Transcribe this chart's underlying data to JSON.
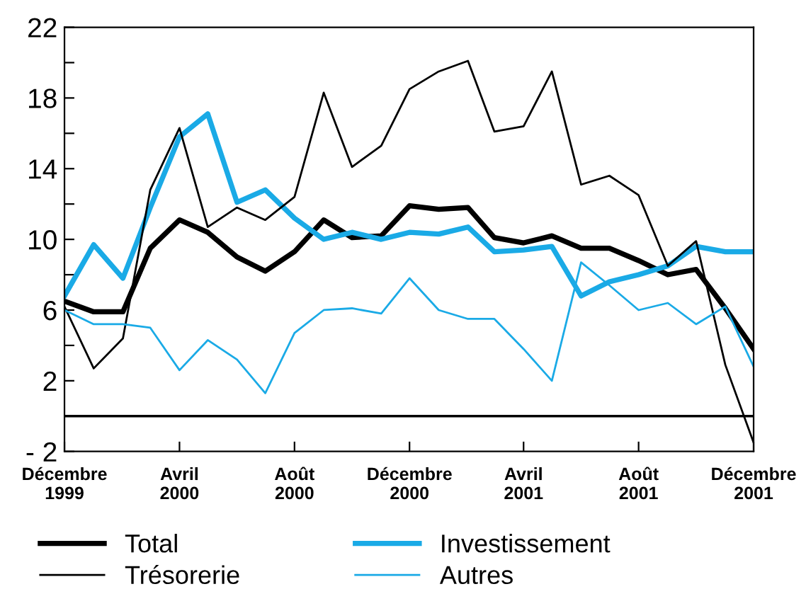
{
  "chart_data": {
    "type": "line",
    "x": [
      "1999-12",
      "2000-01",
      "2000-02",
      "2000-03",
      "2000-04",
      "2000-05",
      "2000-06",
      "2000-07",
      "2000-08",
      "2000-09",
      "2000-10",
      "2000-11",
      "2000-12",
      "2001-01",
      "2001-02",
      "2001-03",
      "2001-04",
      "2001-05",
      "2001-06",
      "2001-07",
      "2001-08",
      "2001-09",
      "2001-10",
      "2001-11",
      "2001-12"
    ],
    "series": [
      {
        "name": "Total",
        "color": "#000000",
        "values": [
          6.5,
          5.9,
          5.9,
          9.5,
          11.1,
          10.4,
          9.0,
          8.2,
          9.3,
          11.1,
          10.1,
          10.2,
          11.9,
          11.7,
          11.8,
          10.1,
          9.8,
          10.2,
          9.5,
          9.5,
          8.8,
          8.0,
          8.3,
          6.1,
          3.8
        ]
      },
      {
        "name": "Investissement",
        "color": "#1aaae6",
        "values": [
          6.8,
          9.7,
          7.8,
          11.8,
          15.8,
          17.1,
          12.1,
          12.8,
          11.2,
          10.0,
          10.4,
          10.0,
          10.4,
          10.3,
          10.7,
          9.3,
          9.4,
          9.6,
          6.8,
          7.6,
          8.0,
          8.5,
          9.6,
          9.3,
          9.3
        ]
      },
      {
        "name": "Trésorerie",
        "color": "#000000",
        "values": [
          6.2,
          2.7,
          4.4,
          12.8,
          16.3,
          10.7,
          11.8,
          11.1,
          12.4,
          18.3,
          14.1,
          15.3,
          18.5,
          19.5,
          20.1,
          16.1,
          16.4,
          19.5,
          13.1,
          13.6,
          12.5,
          8.5,
          9.9,
          2.9,
          -1.5
        ]
      },
      {
        "name": "Autres",
        "color": "#1aaae6",
        "values": [
          6.0,
          5.2,
          5.2,
          5.0,
          2.6,
          4.3,
          3.2,
          1.3,
          4.7,
          6.0,
          6.1,
          5.8,
          7.8,
          6.0,
          5.5,
          5.5,
          3.8,
          2.0,
          8.7,
          7.4,
          6.0,
          6.4,
          5.2,
          6.2,
          2.8
        ]
      }
    ],
    "xlim": [
      "1999-12",
      "2001-12"
    ],
    "xticks": [
      {
        "value": "1999-12",
        "label": "Décembre\n1999"
      },
      {
        "value": "2000-04",
        "label": "Avril\n2000"
      },
      {
        "value": "2000-08",
        "label": "Août\n2000"
      },
      {
        "value": "2000-12",
        "label": "Décembre\n2000"
      },
      {
        "value": "2001-04",
        "label": "Avril\n2001"
      },
      {
        "value": "2001-08",
        "label": "Août\n2001"
      },
      {
        "value": "2001-12",
        "label": "Décembre\n2001"
      }
    ],
    "ylim": [
      -2,
      22
    ],
    "yticks": [
      {
        "value": -2,
        "label": "- 2"
      },
      {
        "value": 0,
        "label": null
      },
      2,
      {
        "value": 4,
        "label": null
      },
      6,
      {
        "value": 8,
        "label": null
      },
      10,
      {
        "value": 12,
        "label": null
      },
      14,
      {
        "value": 16,
        "label": null
      },
      18,
      {
        "value": 20,
        "label": null
      },
      22
    ],
    "ref_lines": [
      {
        "axis": "y",
        "value": 0,
        "color": "#000000"
      }
    ],
    "grid": false,
    "legend": "bottom",
    "marker": "none",
    "line_style": "solid"
  }
}
